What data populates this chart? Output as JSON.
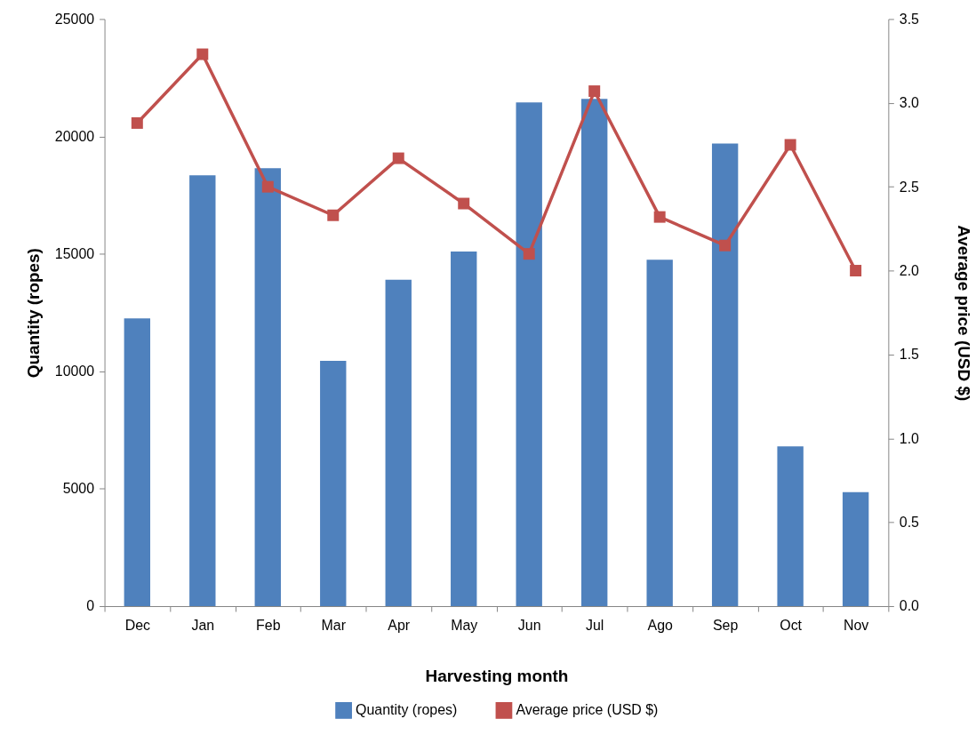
{
  "chart_data": {
    "type": "bar",
    "xlabel": "Harvesting month",
    "ylabel": "Quantity (ropes)",
    "y2label": "Average price (USD $)",
    "categories": [
      "Dec",
      "Jan",
      "Feb",
      "Mar",
      "Apr",
      "May",
      "Jun",
      "Jul",
      "Ago",
      "Sep",
      "Oct",
      "Nov"
    ],
    "series": [
      {
        "name": "Quantity (ropes)",
        "color": "#4f81bd",
        "values": [
          12250,
          18350,
          18650,
          10450,
          13900,
          15100,
          21450,
          21600,
          14750,
          19700,
          6800,
          4850
        ]
      },
      {
        "name": "Average price (USD $)",
        "type": "line",
        "axis": "y2",
        "color": "#c0504d",
        "marker": "square",
        "values": [
          2.88,
          3.29,
          2.5,
          2.33,
          2.67,
          2.4,
          2.1,
          3.07,
          2.32,
          2.15,
          2.75,
          2.0
        ]
      }
    ],
    "ylim": [
      0,
      25000
    ],
    "yticks": [
      0,
      5000,
      10000,
      15000,
      20000,
      25000
    ],
    "y2lim": [
      0,
      3.5
    ],
    "y2ticks": [
      {
        "value": 0,
        "label": "0.0"
      },
      0.5,
      {
        "value": 1,
        "label": "1.0"
      },
      1.5,
      {
        "value": 2,
        "label": "2.0"
      },
      2.5,
      {
        "value": 3,
        "label": "3.0"
      },
      3.5
    ],
    "legend": "bottom"
  }
}
